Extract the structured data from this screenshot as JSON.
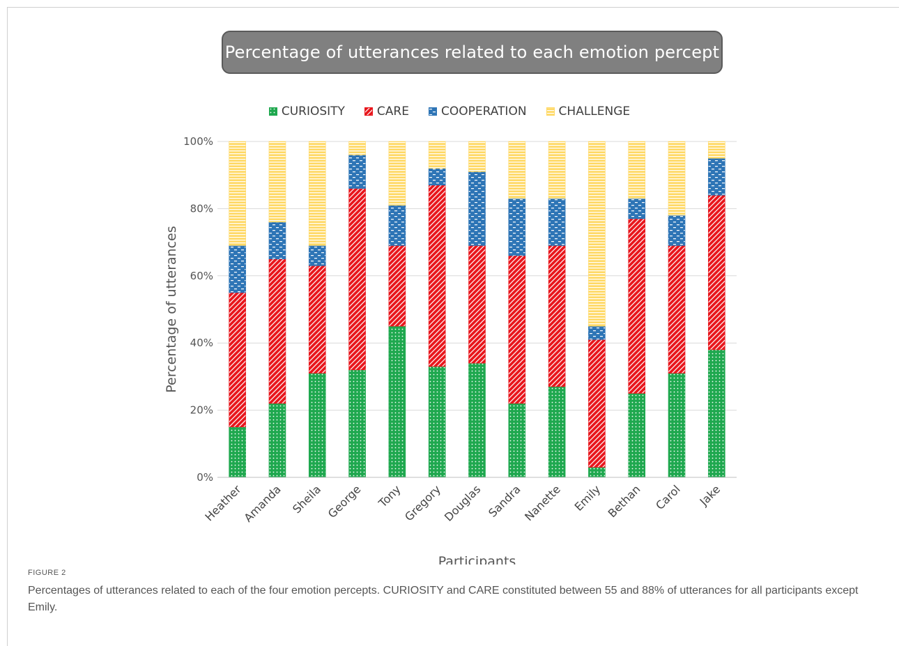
{
  "chart_data": {
    "type": "bar",
    "stacked": true,
    "title": "Percentage of utterances related to each emotion percept",
    "xlabel": "Participants",
    "ylabel": "Percentage of utterances",
    "ylim": [
      0,
      100
    ],
    "yticks": [
      "0%",
      "20%",
      "40%",
      "60%",
      "80%",
      "100%"
    ],
    "grid": true,
    "legend_position": "top",
    "categories": [
      "Heather",
      "Amanda",
      "Sheila",
      "George",
      "Tony",
      "Gregory",
      "Douglas",
      "Sandra",
      "Nanette",
      "Emily",
      "Bethan",
      "Carol",
      "Jake"
    ],
    "series": [
      {
        "name": "CURIOSITY",
        "color": "#1fa84f",
        "pattern": "dots",
        "values": [
          15,
          22,
          31,
          32,
          45,
          33,
          34,
          22,
          27,
          3,
          25,
          31,
          38
        ]
      },
      {
        "name": "CARE",
        "color": "#e8161c",
        "pattern": "diagonal",
        "values": [
          40,
          43,
          32,
          54,
          24,
          54,
          35,
          44,
          42,
          38,
          52,
          38,
          46
        ]
      },
      {
        "name": "COOPERATION",
        "color": "#2e75b6",
        "pattern": "dashes",
        "values": [
          14,
          11,
          6,
          10,
          12,
          5,
          22,
          17,
          14,
          4,
          6,
          9,
          11
        ]
      },
      {
        "name": "CHALLENGE",
        "color": "#ffd966",
        "pattern": "horizontal",
        "values": [
          31,
          24,
          31,
          4,
          19,
          8,
          9,
          17,
          17,
          55,
          17,
          22,
          5
        ]
      }
    ]
  },
  "caption": {
    "label": "FIGURE 2",
    "text": "Percentages of utterances related to each of the four emotion percepts. CURIOSITY and CARE constituted between 55 and 88% of utterances for all participants except Emily."
  }
}
